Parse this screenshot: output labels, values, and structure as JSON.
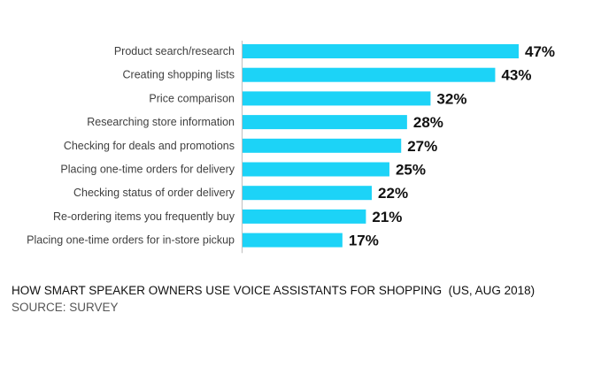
{
  "chart_data": {
    "type": "bar",
    "orientation": "horizontal",
    "title": "HOW SMART SPEAKER OWNERS USE VOICE ASSISTANTS FOR SHOPPING  (US, AUG 2018)",
    "source": "SOURCE: SURVEY",
    "xlabel": "",
    "ylabel": "",
    "categories": [
      "Product search/research",
      "Creating shopping lists",
      "Price comparison",
      "Researching store information",
      "Checking for deals and promotions",
      "Placing one-time orders for delivery",
      "Checking status of order delivery",
      "Re-ordering items you frequently buy",
      "Placing one-time orders for in-store pickup"
    ],
    "values": [
      47,
      43,
      32,
      28,
      27,
      25,
      22,
      21,
      17
    ],
    "data_labels": [
      "47%",
      "43%",
      "32%",
      "28%",
      "27%",
      "25%",
      "22%",
      "21%",
      "17%"
    ],
    "unit": "%",
    "xlim": [
      0,
      50
    ],
    "grid": false,
    "legend": "none",
    "colors": {
      "bar": "#1cd3f7",
      "axis": "#bfbfbf",
      "label": "#404040",
      "value": "#111111"
    }
  }
}
